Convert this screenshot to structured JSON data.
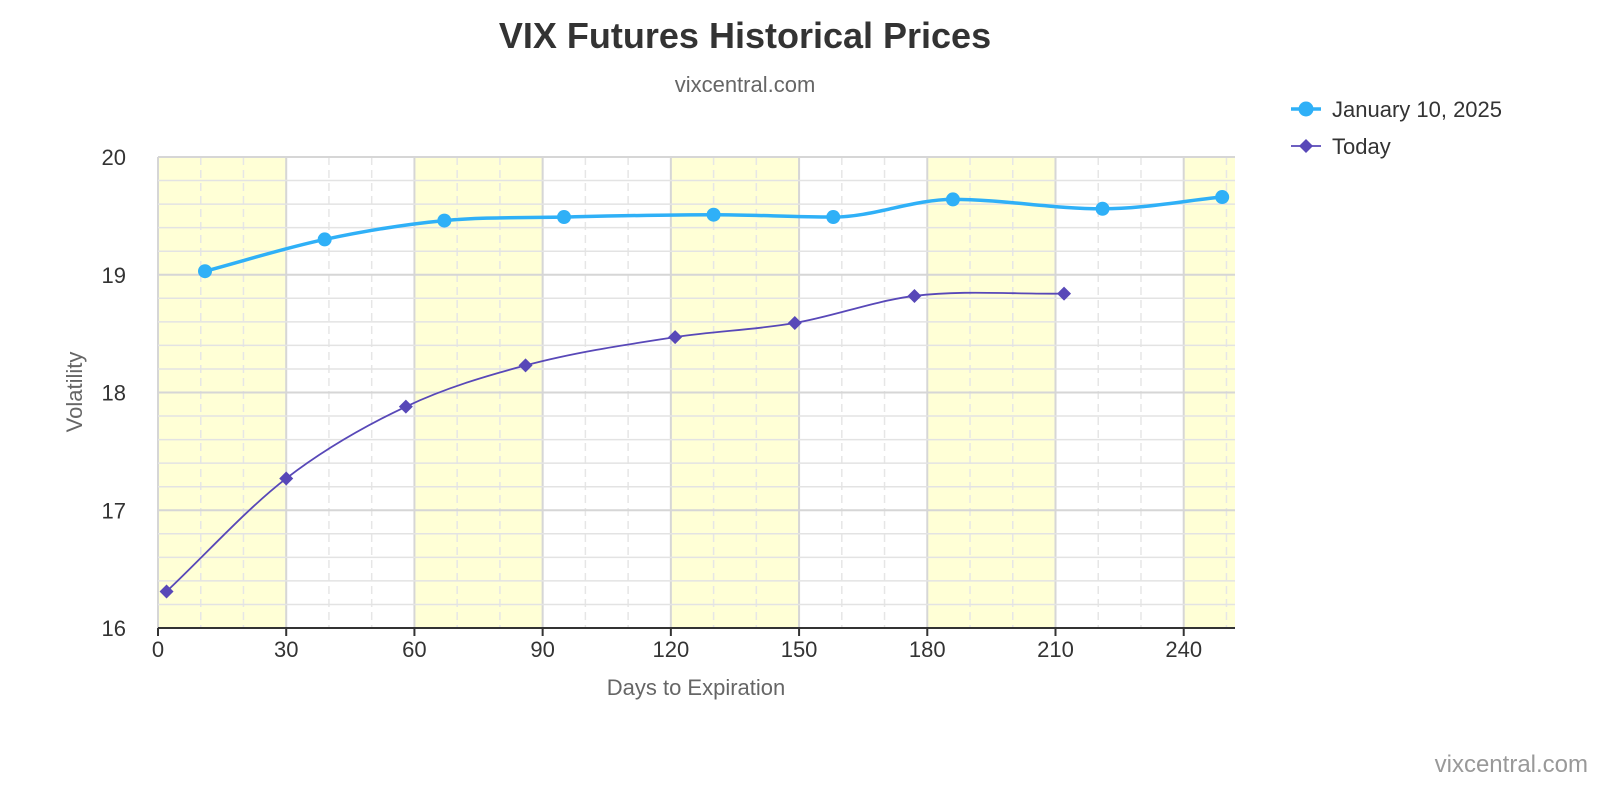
{
  "chart_data": {
    "type": "line",
    "title": "VIX Futures Historical Prices",
    "subtitle": "vixcentral.com",
    "xlabel": "Days to Expiration",
    "ylabel": "Volatility",
    "xlim": [
      0,
      252
    ],
    "ylim": [
      16,
      20
    ],
    "xticks": [
      0,
      30,
      60,
      90,
      120,
      150,
      180,
      210,
      240
    ],
    "yticks": [
      16,
      17,
      18,
      19,
      20
    ],
    "x_minor_step": 10,
    "y_minor_step": 0.2,
    "shaded_bands": [
      [
        0,
        30
      ],
      [
        60,
        90
      ],
      [
        120,
        150
      ],
      [
        180,
        210
      ],
      [
        240,
        252
      ]
    ],
    "band_color": "#ffffd6",
    "grid": true,
    "legend_position": "top-right",
    "series": [
      {
        "name": "January 10, 2025",
        "color": "#2fb0f7",
        "marker": "circle",
        "points": [
          [
            11,
            19.03
          ],
          [
            39,
            19.3
          ],
          [
            67,
            19.46
          ],
          [
            95,
            19.49
          ],
          [
            130,
            19.51
          ],
          [
            158,
            19.49
          ],
          [
            186,
            19.64
          ],
          [
            221,
            19.56
          ],
          [
            249,
            19.66
          ]
        ]
      },
      {
        "name": "Today",
        "color": "#5848b8",
        "marker": "diamond",
        "points": [
          [
            2,
            16.31
          ],
          [
            30,
            17.27
          ],
          [
            58,
            17.88
          ],
          [
            86,
            18.23
          ],
          [
            121,
            18.47
          ],
          [
            149,
            18.59
          ],
          [
            177,
            18.82
          ],
          [
            212,
            18.84
          ]
        ]
      }
    ]
  },
  "credits": "vixcentral.com"
}
